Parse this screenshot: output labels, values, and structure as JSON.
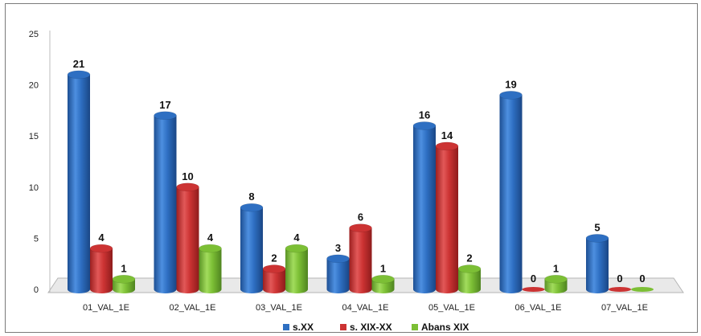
{
  "chart_data": {
    "type": "bar",
    "categories": [
      "01_VAL_1E",
      "02_VAL_1E",
      "03_VAL_1E",
      "04_VAL_1E",
      "05_VAL_1E",
      "06_VAL_1E",
      "07_VAL_1E"
    ],
    "series": [
      {
        "name": "s.XX",
        "values": [
          21,
          17,
          8,
          3,
          16,
          19,
          5
        ],
        "color": "#2e6fc2"
      },
      {
        "name": "s. XIX-XX",
        "values": [
          4,
          10,
          2,
          6,
          14,
          0,
          0
        ],
        "color": "#cc3333"
      },
      {
        "name": "Abans XIX",
        "values": [
          1,
          4,
          4,
          1,
          2,
          1,
          0
        ],
        "color": "#7cbf35"
      }
    ],
    "ylim": [
      0,
      25
    ],
    "yticks": [
      0,
      5,
      10,
      15,
      20,
      25
    ],
    "grid": false,
    "legend": "bottom"
  }
}
